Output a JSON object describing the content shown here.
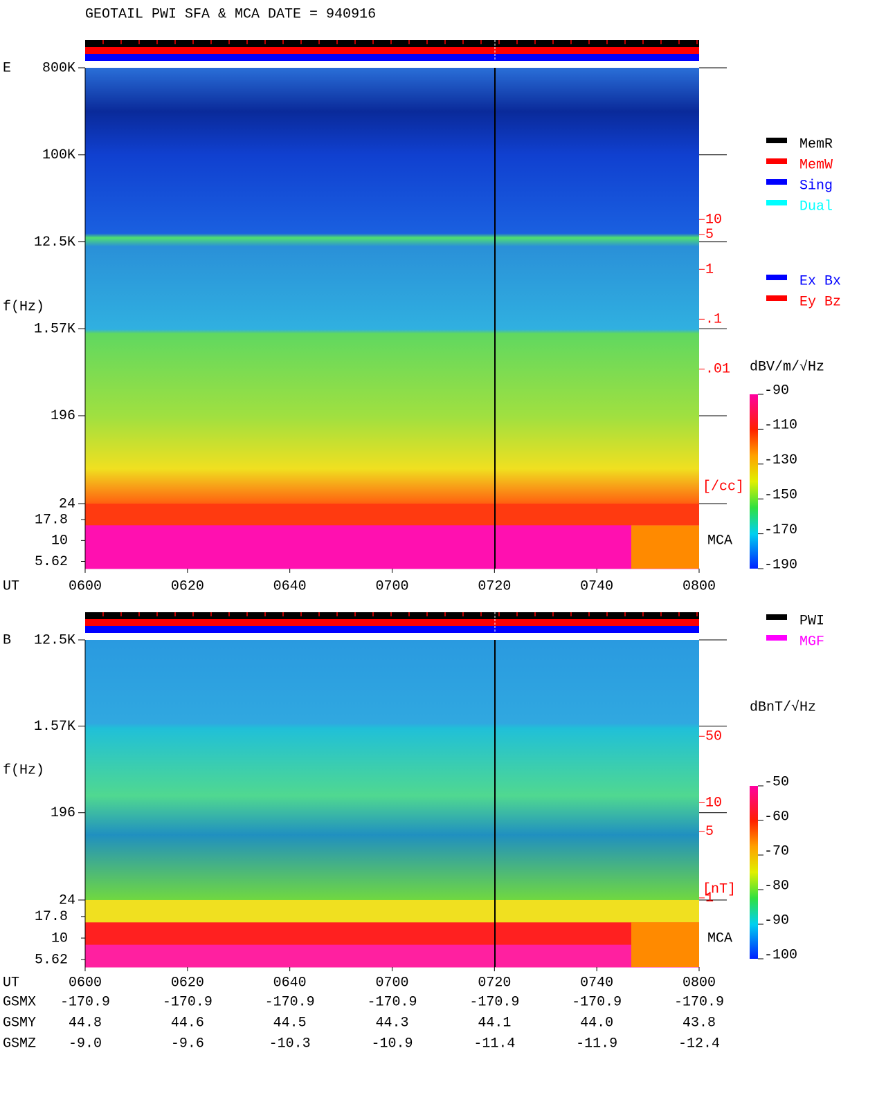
{
  "title": "GEOTAIL  PWI SFA & MCA   DATE = 940916",
  "chart_data": [
    {
      "type": "spectrogram",
      "panel_label": "E",
      "y_label": "f(Hz)",
      "x_label": "UT",
      "categories": [
        "0600",
        "0620",
        "0640",
        "0700",
        "0720",
        "0740",
        "0800"
      ],
      "log_scale": true,
      "ylim": [
        24,
        800000
      ],
      "yticks": [
        {
          "value": 800000,
          "label": "800K"
        },
        {
          "value": 100000,
          "label": "100K"
        },
        {
          "value": 12500,
          "label": "12.5K"
        },
        {
          "value": 1570,
          "label": "1.57K"
        },
        196,
        24
      ],
      "mca_label": "MCA",
      "mca_ylim": [
        4.6,
        27.7
      ],
      "mca_ticks": [
        17.8,
        10,
        5.62
      ],
      "y2lim": [
        2e-05,
        11000
      ],
      "y2ticks": [
        10,
        5,
        1,
        {
          "value": 0.1,
          "label": ".1"
        },
        {
          "value": 0.01,
          "label": ".01"
        }
      ],
      "y2_label": "[/cc]",
      "colorbar_label": "dBV/m/√Hz",
      "clim": [
        -190,
        -90
      ],
      "colorbar_ticks": [
        -90,
        -110,
        -130,
        -150,
        -170,
        -190
      ],
      "legend": [
        [
          {
            "name": "MemR",
            "color": "#000000"
          },
          {
            "name": "MemW",
            "color": "#ff0000"
          },
          {
            "name": "Sing",
            "color": "#0000ff"
          },
          {
            "name": "Dual",
            "color": "#00ffff"
          }
        ],
        [
          {
            "name": "Ex Bx",
            "color": "#0000ff"
          },
          {
            "name": "Ey Bz",
            "color": "#ff0000"
          }
        ]
      ]
    },
    {
      "type": "spectrogram",
      "panel_label": "B",
      "y_label": "f(Hz)",
      "x_label": "UT",
      "categories": [
        "0600",
        "0620",
        "0640",
        "0700",
        "0720",
        "0740",
        "0800"
      ],
      "log_scale": true,
      "ylim": [
        24,
        12500
      ],
      "yticks": [
        {
          "value": 12500,
          "label": "12.5K"
        },
        {
          "value": 1570,
          "label": "1.57K"
        },
        196,
        24
      ],
      "mca_label": "MCA",
      "mca_ylim": [
        4.6,
        27.7
      ],
      "mca_ticks": [
        17.8,
        10,
        5.62
      ],
      "y2lim": [
        0.95,
        515
      ],
      "y2ticks": [
        50,
        10,
        5,
        1
      ],
      "y2_label": "[nT]",
      "colorbar_label": "dBnT/√Hz",
      "clim": [
        -100,
        -50
      ],
      "colorbar_ticks": [
        -50,
        -60,
        -70,
        -80,
        -90,
        -100
      ],
      "legend": [
        [
          {
            "name": "PWI",
            "color": "#000000"
          },
          {
            "name": "MGF",
            "color": "#ff00ff"
          }
        ]
      ],
      "orbit": [
        {
          "name": "GSMX",
          "values": [
            "-170.9",
            "-170.9",
            "-170.9",
            "-170.9",
            "-170.9",
            "-170.9",
            "-170.9"
          ]
        },
        {
          "name": "GSMY",
          "values": [
            "44.8",
            "44.6",
            "44.5",
            "44.3",
            "44.1",
            "44.0",
            "43.8"
          ]
        },
        {
          "name": "GSMZ",
          "values": [
            "-9.0",
            "-9.6",
            "-10.3",
            "-10.9",
            "-11.4",
            "-11.9",
            "-12.4"
          ]
        }
      ]
    }
  ]
}
